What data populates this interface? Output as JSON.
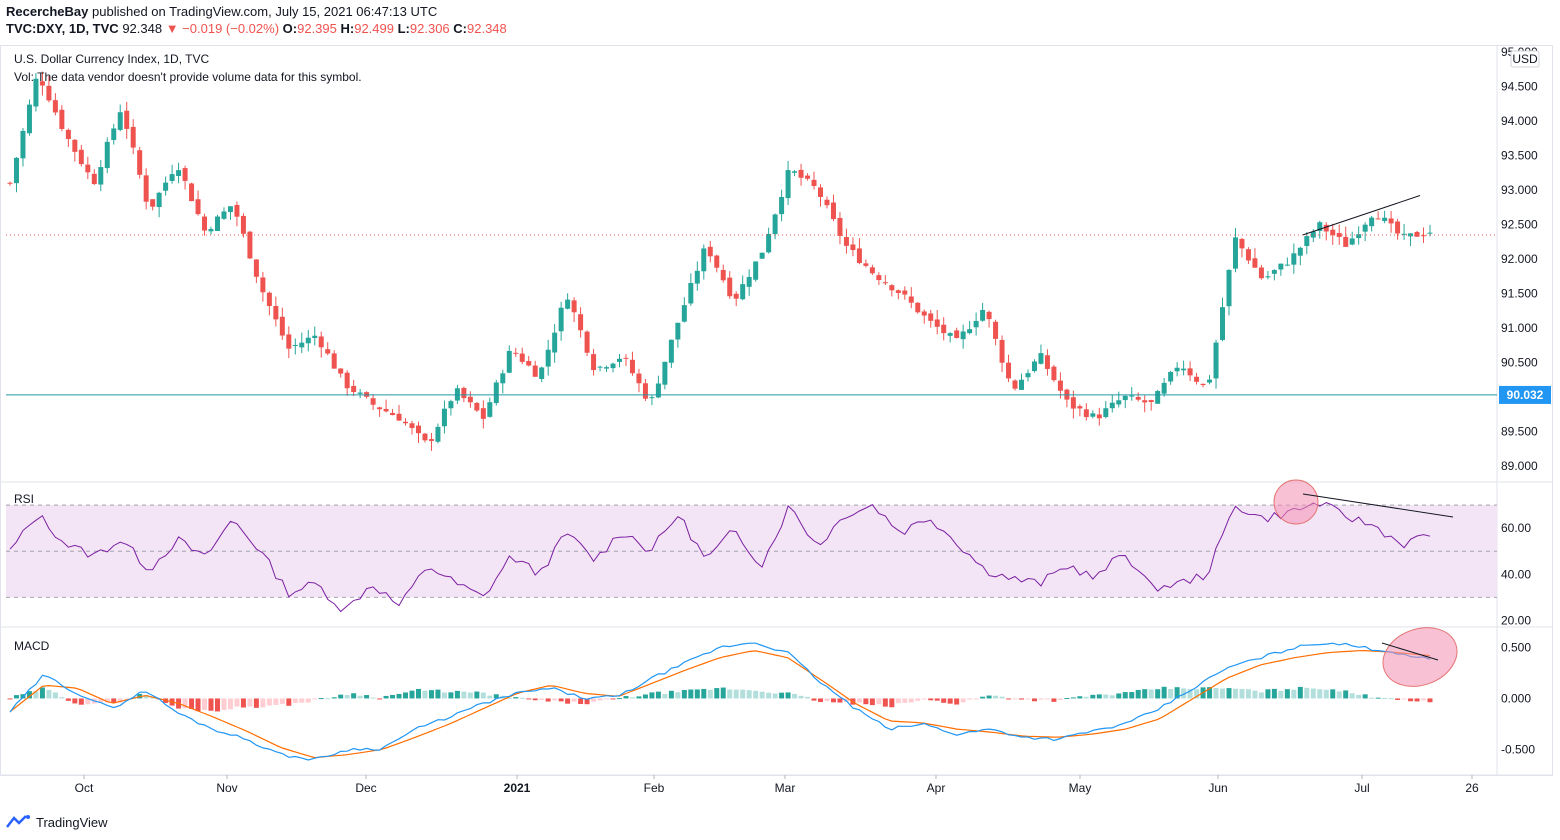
{
  "header": {
    "publisher": "RecercheBay",
    "published_text": "published on TradingView.com, July 15, 2021 06:47:13 UTC",
    "symbol": "TVC:DXY, 1D, TVC",
    "last": "92.348",
    "change": "▼ −0.019 (−0.02%)",
    "o_label": "O:",
    "o": "92.395",
    "h_label": "H:",
    "h": "92.499",
    "l_label": "L:",
    "l": "92.306",
    "c_label": "C:",
    "c": "92.348"
  },
  "main_title": "U.S. Dollar Currency Index, 1D, TVC",
  "vol_note": "Vol: The data vendor doesn't provide volume data for this symbol.",
  "currency_badge": "USD",
  "price_line_label": "90.032",
  "rsi_label": "RSI",
  "macd_label": "MACD",
  "footer_brand": "TradingView",
  "colors": {
    "up": "#26a69a",
    "down": "#ef5350",
    "rsi_line": "#7b1fa2",
    "rsi_band": "#f3e5f5",
    "macd_line": "#2196f3",
    "signal_line": "#ff6d00",
    "price_line": "#2196a6",
    "highlight": "#f48fb1"
  },
  "chart_data": [
    {
      "type": "candlestick",
      "name": "price",
      "y_ticks": [
        "95.000",
        "94.500",
        "94.000",
        "93.500",
        "93.000",
        "92.500",
        "92.000",
        "91.500",
        "91.000",
        "90.500",
        "90.000",
        "89.500",
        "89.000"
      ],
      "ylim": [
        88.8,
        95.1
      ],
      "x_ticks": [
        "Oct",
        "Nov",
        "Dec",
        "2021",
        "Feb",
        "Mar",
        "Apr",
        "May",
        "Jun",
        "Jul",
        "26"
      ],
      "horizontal_line": 90.032,
      "last_close": 92.348,
      "anchors": [
        93.1,
        94.7,
        93.8,
        93.1,
        94.2,
        92.7,
        93.4,
        92.4,
        92.8,
        91.6,
        90.7,
        90.9,
        90.2,
        89.9,
        89.7,
        89.3,
        90.1,
        89.7,
        90.7,
        90.3,
        91.5,
        90.4,
        90.6,
        89.9,
        91.1,
        92.2,
        91.4,
        92.1,
        93.3,
        93.0,
        92.2,
        91.8,
        91.5,
        91.1,
        90.8,
        91.3,
        90.1,
        90.6,
        89.9,
        89.7,
        90.0,
        89.9,
        90.5,
        90.1,
        92.3,
        91.7,
        92.0,
        92.5,
        92.2,
        92.7,
        92.3,
        92.4
      ]
    },
    {
      "type": "line",
      "name": "RSI",
      "y_ticks": [
        "60.00",
        "40.00",
        "20.00"
      ],
      "ylim": [
        18,
        80
      ],
      "bands": [
        30,
        50,
        70
      ],
      "anchors": [
        50,
        66,
        53,
        48,
        55,
        42,
        55,
        47,
        64,
        50,
        32,
        36,
        24,
        36,
        26,
        44,
        36,
        30,
        48,
        40,
        58,
        46,
        59,
        50,
        66,
        46,
        59,
        44,
        70,
        52,
        66,
        70,
        58,
        65,
        54,
        42,
        38,
        36,
        44,
        38,
        50,
        34,
        36,
        40,
        70,
        64,
        67,
        71,
        65,
        61,
        53,
        57
      ]
    },
    {
      "type": "line",
      "name": "MACD",
      "y_ticks": [
        "0.500",
        "0.000",
        "-0.500"
      ],
      "ylim": [
        -0.75,
        0.7
      ],
      "series_anchors": {
        "macd": [
          -0.13,
          0.23,
          0.05,
          -0.1,
          0.08,
          -0.15,
          -0.3,
          -0.4,
          -0.55,
          -0.6,
          -0.5,
          -0.49,
          -0.3,
          -0.18,
          -0.05,
          0.05,
          0.1,
          0.0,
          0.02,
          0.2,
          0.35,
          0.5,
          0.55,
          0.45,
          0.15,
          -0.1,
          -0.3,
          -0.25,
          -0.35,
          -0.3,
          -0.38,
          -0.4,
          -0.32,
          -0.25,
          -0.1,
          0.1,
          0.3,
          0.4,
          0.5,
          0.55,
          0.5,
          0.45,
          0.38
        ],
        "signal": [
          -0.13,
          0.13,
          0.1,
          -0.05,
          0.03,
          -0.05,
          -0.18,
          -0.32,
          -0.48,
          -0.58,
          -0.55,
          -0.5,
          -0.38,
          -0.25,
          -0.1,
          0.05,
          0.13,
          0.05,
          0.02,
          0.15,
          0.28,
          0.4,
          0.47,
          0.4,
          0.18,
          -0.05,
          -0.22,
          -0.24,
          -0.3,
          -0.33,
          -0.37,
          -0.38,
          -0.35,
          -0.3,
          -0.2,
          0.0,
          0.2,
          0.33,
          0.4,
          0.45,
          0.47,
          0.45,
          0.42
        ]
      }
    }
  ]
}
